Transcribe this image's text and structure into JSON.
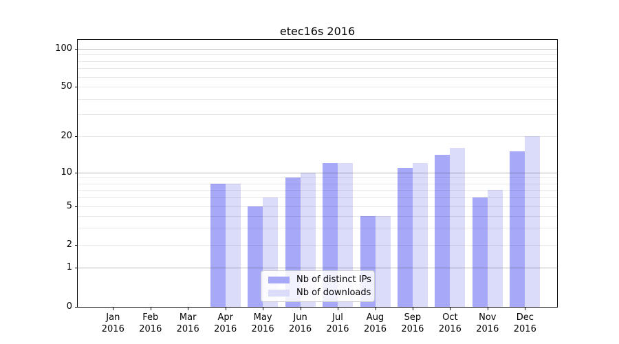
{
  "title": "etec16s 2016",
  "year": "2016",
  "months": [
    "Jan",
    "Feb",
    "Mar",
    "Apr",
    "May",
    "Jun",
    "Jul",
    "Aug",
    "Sep",
    "Oct",
    "Nov",
    "Dec"
  ],
  "chart_data": {
    "type": "bar",
    "title": "etec16s 2016",
    "categories": [
      "Jan 2016",
      "Feb 2016",
      "Mar 2016",
      "Apr 2016",
      "May 2016",
      "Jun 2016",
      "Jul 2016",
      "Aug 2016",
      "Sep 2016",
      "Oct 2016",
      "Nov 2016",
      "Dec 2016"
    ],
    "series": [
      {
        "name": "Nb of distinct IPs",
        "color": "#a8a8f8",
        "values": [
          null,
          null,
          null,
          8,
          5,
          9,
          12,
          4,
          11,
          14,
          6,
          15
        ]
      },
      {
        "name": "Nb of downloads",
        "color": "#dbdbfa",
        "values": [
          null,
          null,
          null,
          8,
          6,
          10,
          12,
          4,
          12,
          16,
          7,
          20
        ]
      }
    ],
    "yscale": "log above 1, linear 0-1",
    "yticks": [
      0,
      1,
      2,
      5,
      10,
      20,
      50,
      100
    ],
    "ylim": [
      0,
      115
    ],
    "grid_dark_values": [
      1,
      10,
      100
    ],
    "grid_light_values": [
      2,
      3,
      4,
      5,
      6,
      7,
      8,
      9,
      20,
      30,
      40,
      50,
      60,
      70,
      80,
      90
    ],
    "grid": true,
    "legend_position": "lower center",
    "xlabel": "",
    "ylabel": ""
  },
  "colors": {
    "axis": "#000000",
    "legend_border": "#cccccc",
    "grid_major": "rgba(0,0,0,0.28)",
    "grid_minor": "rgba(0,0,0,0.09)"
  }
}
